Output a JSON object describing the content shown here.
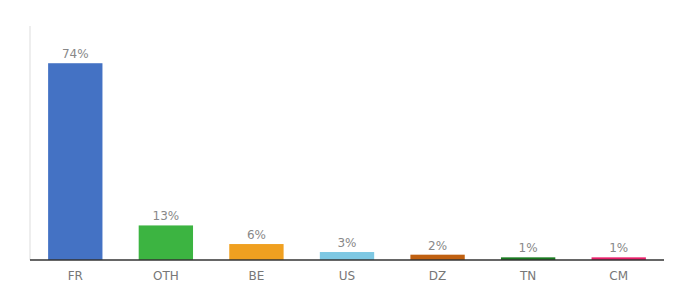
{
  "chart_data": {
    "type": "bar",
    "categories": [
      "FR",
      "OTH",
      "BE",
      "US",
      "DZ",
      "TN",
      "CM"
    ],
    "values": [
      74,
      13,
      6,
      3,
      2,
      1,
      1
    ],
    "value_labels": [
      "74%",
      "13%",
      "6%",
      "3%",
      "2%",
      "1%",
      "1%"
    ],
    "colors": [
      "#4472C4",
      "#3CB441",
      "#F0A020",
      "#7EC8E3",
      "#C06010",
      "#1A7A20",
      "#E8206A"
    ],
    "ylim": [
      0,
      88
    ],
    "data_labels": true,
    "tick_labels": "x"
  }
}
